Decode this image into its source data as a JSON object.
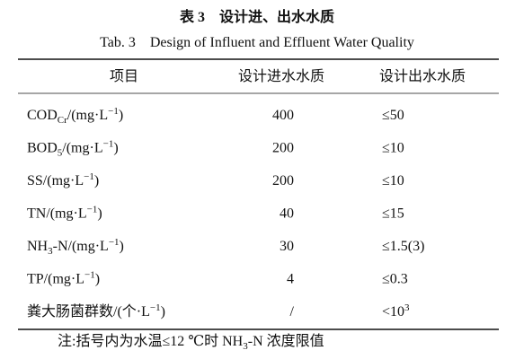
{
  "title": "表 3　设计进、出水水质",
  "subtitle": "Tab. 3　Design of Influent and Effluent Water Quality",
  "table": {
    "header": [
      "项目",
      "设计进水水质",
      "设计出水水质"
    ],
    "rows": [
      [
        [
          {
            "text": "COD"
          },
          {
            "text": "Cr",
            "pos": "sub"
          },
          {
            "text": "/(mg·L"
          },
          {
            "text": "−1",
            "pos": "sup"
          },
          {
            "text": ")"
          }
        ],
        "400",
        "≤50"
      ],
      [
        [
          {
            "text": "BOD"
          },
          {
            "text": "5",
            "pos": "sub"
          },
          {
            "text": "/(mg·L"
          },
          {
            "text": "−1",
            "pos": "sup"
          },
          {
            "text": ")"
          }
        ],
        "200",
        "≤10"
      ],
      [
        [
          {
            "text": "SS/(mg·L"
          },
          {
            "text": "−1",
            "pos": "sup"
          },
          {
            "text": ")"
          }
        ],
        "200",
        "≤10"
      ],
      [
        [
          {
            "text": "TN/(mg·L"
          },
          {
            "text": "−1",
            "pos": "sup"
          },
          {
            "text": ")"
          }
        ],
        "40",
        "≤15"
      ],
      [
        [
          {
            "text": "NH"
          },
          {
            "text": "3",
            "pos": "sub"
          },
          {
            "text": "-N/(mg·L"
          },
          {
            "text": "−1",
            "pos": "sup"
          },
          {
            "text": ")"
          }
        ],
        "30",
        "≤1.5(3)"
      ],
      [
        [
          {
            "text": "TP/(mg·L"
          },
          {
            "text": "−1",
            "pos": "sup"
          },
          {
            "text": ")"
          }
        ],
        "4",
        "≤0.3"
      ],
      [
        [
          {
            "text": "粪大肠菌群数/(个·L"
          },
          {
            "text": "−1",
            "pos": "sup"
          },
          {
            "text": ")"
          }
        ],
        "/",
        [
          {
            "text": "<10"
          },
          {
            "text": "3",
            "pos": "sup"
          }
        ]
      ]
    ]
  },
  "note": [
    {
      "text": "注:括号内为水温≤12 ℃时 NH"
    },
    {
      "text": "3",
      "pos": "sub"
    },
    {
      "text": "-N 浓度限值"
    }
  ]
}
